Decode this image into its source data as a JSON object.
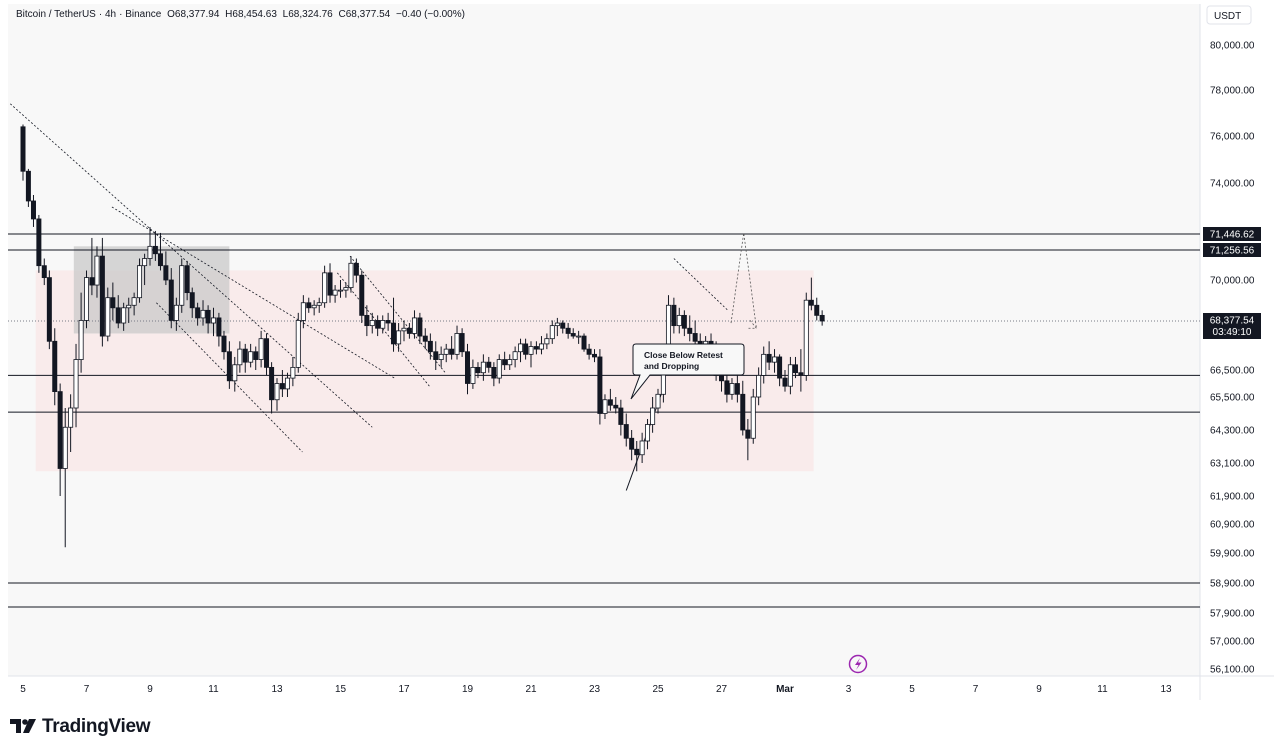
{
  "header": {
    "symbol": "Bitcoin / TetherUS",
    "interval": "4h",
    "exchange": "Binance",
    "open": "O68,377.94",
    "high": "H68,454.63",
    "low": "L68,324.76",
    "close": "C68,377.54",
    "change": "−0.40 (−0.00%)"
  },
  "currency_label": "USDT",
  "brand": "TradingView",
  "colors": {
    "up": "#ffffff",
    "down": "#131722",
    "zone": "#f9e7e7",
    "box": "#c9c9c9",
    "background": "#f8f8f8"
  },
  "chart_data": {
    "type": "candlestick",
    "title": "Bitcoin / TetherUS · 4h · Binance",
    "y_tick_labels": [
      "80,000.00",
      "78,000.00",
      "76,000.00",
      "74,000.00",
      "70,000.00",
      "66,500.00",
      "65,500.00",
      "64,300.00",
      "63,100.00",
      "61,900.00",
      "60,900.00",
      "59,900.00",
      "58,900.00",
      "57,900.00",
      "57,000.00",
      "56,100.00"
    ],
    "x_tick_labels": [
      "5",
      "7",
      "9",
      "11",
      "13",
      "15",
      "17",
      "19",
      "21",
      "23",
      "25",
      "27",
      "Mar",
      "3",
      "5",
      "7",
      "9",
      "11",
      "13"
    ],
    "price_badges": [
      {
        "label": "71,446.62",
        "value": 71446.62
      },
      {
        "label": "71,256.56",
        "value": 71256.56
      },
      {
        "label": "68,377.54",
        "value": 68377.54,
        "sub": "03:49:10"
      }
    ],
    "horizontal_levels": [
      71446.62,
      71256.56,
      66300,
      64950,
      58900,
      58100
    ],
    "annotation": {
      "text": [
        "Close Below Retest",
        "and Dropping"
      ]
    },
    "ohlc": [
      [
        5.0,
        76400,
        76500,
        74100,
        74500
      ],
      [
        5.17,
        74500,
        74600,
        72800,
        73100
      ],
      [
        5.33,
        73100,
        73400,
        71800,
        72200
      ],
      [
        5.5,
        72200,
        72400,
        70300,
        70600
      ],
      [
        5.67,
        70600,
        70900,
        69800,
        70100
      ],
      [
        5.83,
        70100,
        70400,
        67300,
        67600
      ],
      [
        6.0,
        67600,
        68100,
        65200,
        65700
      ],
      [
        6.17,
        65700,
        66000,
        61900,
        62900
      ],
      [
        6.33,
        62900,
        65100,
        60100,
        64400
      ],
      [
        6.5,
        64400,
        65600,
        63500,
        65100
      ],
      [
        6.67,
        65100,
        67500,
        64400,
        66900
      ],
      [
        6.83,
        66900,
        69500,
        66400,
        68400
      ],
      [
        7.0,
        68400,
        70400,
        68100,
        70100
      ],
      [
        7.17,
        70100,
        71400,
        69400,
        69800
      ],
      [
        7.33,
        69800,
        71300,
        69300,
        71000
      ],
      [
        7.5,
        71000,
        71400,
        67400,
        67800
      ],
      [
        7.67,
        67800,
        69700,
        67600,
        69300
      ],
      [
        7.83,
        69300,
        69900,
        68400,
        68900
      ],
      [
        8.0,
        68900,
        69400,
        68100,
        68300
      ],
      [
        8.17,
        68300,
        69100,
        68000,
        68900
      ],
      [
        8.33,
        68900,
        69300,
        68300,
        69000
      ],
      [
        8.5,
        69000,
        69500,
        68600,
        69300
      ],
      [
        8.67,
        69300,
        70900,
        69100,
        70600
      ],
      [
        8.83,
        70600,
        71100,
        69800,
        70900
      ],
      [
        9.0,
        70900,
        71800,
        70600,
        71300
      ],
      [
        9.17,
        71300,
        71600,
        70800,
        71100
      ],
      [
        9.33,
        71100,
        71500,
        70400,
        70600
      ],
      [
        9.5,
        70600,
        71200,
        69800,
        70000
      ],
      [
        9.67,
        70000,
        70500,
        68100,
        68400
      ],
      [
        9.83,
        68400,
        69300,
        68000,
        69000
      ],
      [
        10.0,
        69000,
        70900,
        68700,
        70600
      ],
      [
        10.17,
        70600,
        70800,
        69200,
        69500
      ],
      [
        10.33,
        69500,
        69700,
        68500,
        68900
      ],
      [
        10.5,
        68900,
        69100,
        68200,
        68500
      ],
      [
        10.67,
        68500,
        69200,
        68200,
        68800
      ],
      [
        10.83,
        68800,
        69000,
        67900,
        68300
      ],
      [
        11.0,
        68300,
        68900,
        67800,
        68500
      ],
      [
        11.17,
        68500,
        68700,
        67400,
        67800
      ],
      [
        11.33,
        67800,
        68000,
        66900,
        67200
      ],
      [
        11.5,
        67200,
        67600,
        65800,
        66100
      ],
      [
        11.67,
        66100,
        67000,
        65700,
        66700
      ],
      [
        11.83,
        66700,
        67600,
        66400,
        67300
      ],
      [
        12.0,
        67300,
        67500,
        66400,
        66800
      ],
      [
        12.17,
        66800,
        67500,
        66600,
        67200
      ],
      [
        12.33,
        67200,
        67400,
        66500,
        66900
      ],
      [
        12.5,
        66900,
        68000,
        66600,
        67700
      ],
      [
        12.67,
        67700,
        67900,
        66300,
        66600
      ],
      [
        12.83,
        66600,
        66800,
        64900,
        65400
      ],
      [
        13.0,
        65400,
        66200,
        65000,
        66000
      ],
      [
        13.17,
        66000,
        66500,
        65500,
        65800
      ],
      [
        13.33,
        65800,
        66400,
        65500,
        66200
      ],
      [
        13.5,
        66200,
        67000,
        65900,
        66600
      ],
      [
        13.67,
        66600,
        68700,
        66400,
        68400
      ],
      [
        13.83,
        68400,
        69400,
        68100,
        69100
      ],
      [
        14.0,
        69100,
        69300,
        68700,
        68900
      ],
      [
        14.17,
        68900,
        69200,
        68600,
        69000
      ],
      [
        14.33,
        69000,
        69300,
        68700,
        69100
      ],
      [
        14.5,
        69100,
        70600,
        68900,
        70300
      ],
      [
        14.67,
        70300,
        70700,
        69100,
        69400
      ],
      [
        14.83,
        69400,
        69800,
        69100,
        69600
      ],
      [
        15.0,
        69600,
        70000,
        69300,
        69600
      ],
      [
        15.17,
        69600,
        69900,
        69300,
        69700
      ],
      [
        15.33,
        69700,
        71000,
        69500,
        70700
      ],
      [
        15.5,
        70700,
        70900,
        69900,
        70200
      ],
      [
        15.67,
        70200,
        70400,
        68300,
        68600
      ],
      [
        15.83,
        68600,
        69000,
        67800,
        68200
      ],
      [
        16.0,
        68200,
        68700,
        67900,
        68400
      ],
      [
        16.17,
        68400,
        68600,
        67800,
        68100
      ],
      [
        16.33,
        68100,
        68600,
        67900,
        68400
      ],
      [
        16.5,
        68400,
        68700,
        68000,
        68300
      ],
      [
        16.67,
        68300,
        69300,
        67200,
        67500
      ],
      [
        16.83,
        67500,
        68300,
        67200,
        68000
      ],
      [
        17.0,
        68000,
        68400,
        67600,
        68100
      ],
      [
        17.17,
        68100,
        68300,
        67700,
        67900
      ],
      [
        17.33,
        67900,
        68800,
        67700,
        68500
      ],
      [
        17.5,
        68500,
        68700,
        67500,
        67800
      ],
      [
        17.67,
        67800,
        68100,
        67300,
        67600
      ],
      [
        17.83,
        67600,
        67900,
        66900,
        67200
      ],
      [
        18.0,
        67200,
        67600,
        66500,
        66900
      ],
      [
        18.17,
        66900,
        67400,
        66600,
        67100
      ],
      [
        18.33,
        67100,
        67500,
        66800,
        67300
      ],
      [
        18.5,
        67300,
        67800,
        66900,
        67100
      ],
      [
        18.67,
        67100,
        68200,
        66900,
        67900
      ],
      [
        18.83,
        67900,
        68100,
        67000,
        67200
      ],
      [
        19.0,
        67200,
        67500,
        65600,
        66000
      ],
      [
        19.17,
        66000,
        66900,
        65800,
        66600
      ],
      [
        19.33,
        66600,
        66800,
        66200,
        66400
      ],
      [
        19.5,
        66400,
        67100,
        66100,
        66800
      ],
      [
        19.67,
        66800,
        67000,
        66400,
        66600
      ],
      [
        19.83,
        66600,
        66800,
        65900,
        66200
      ],
      [
        20.0,
        66200,
        67100,
        66000,
        66900
      ],
      [
        20.17,
        66900,
        67200,
        66500,
        66700
      ],
      [
        20.33,
        66700,
        67100,
        66500,
        66900
      ],
      [
        20.5,
        66900,
        67400,
        66600,
        67200
      ],
      [
        20.67,
        67200,
        67700,
        66800,
        67500
      ],
      [
        20.83,
        67500,
        67700,
        66900,
        67100
      ],
      [
        21.0,
        67100,
        67600,
        66600,
        67400
      ],
      [
        21.17,
        67400,
        67600,
        67100,
        67300
      ],
      [
        21.33,
        67300,
        67800,
        67100,
        67500
      ],
      [
        21.5,
        67500,
        67900,
        67300,
        67700
      ],
      [
        21.67,
        67700,
        68400,
        67500,
        68200
      ],
      [
        21.83,
        68200,
        68500,
        67800,
        68300
      ],
      [
        22.0,
        68300,
        68400,
        67900,
        68100
      ],
      [
        22.17,
        68100,
        68300,
        67700,
        67900
      ],
      [
        22.33,
        67900,
        68100,
        67700,
        67800
      ],
      [
        22.5,
        67800,
        68000,
        67500,
        67800
      ],
      [
        22.67,
        67800,
        67900,
        67200,
        67300
      ],
      [
        22.83,
        67300,
        67500,
        66900,
        67100
      ],
      [
        23.0,
        67100,
        67300,
        66800,
        67000
      ],
      [
        23.17,
        67000,
        67300,
        64500,
        64900
      ],
      [
        23.33,
        64900,
        65600,
        64700,
        65400
      ],
      [
        23.5,
        65400,
        65800,
        65000,
        65200
      ],
      [
        23.67,
        65200,
        65500,
        64900,
        65100
      ],
      [
        23.83,
        65100,
        65400,
        64100,
        64500
      ],
      [
        24.0,
        64500,
        64900,
        63700,
        64000
      ],
      [
        24.17,
        64000,
        64300,
        63200,
        63600
      ],
      [
        24.33,
        63600,
        63900,
        62800,
        63400
      ],
      [
        24.5,
        63400,
        64200,
        63100,
        63900
      ],
      [
        24.67,
        63900,
        64700,
        63600,
        64500
      ],
      [
        24.83,
        64500,
        65500,
        64200,
        65100
      ],
      [
        25.0,
        65100,
        65800,
        64900,
        65600
      ],
      [
        25.17,
        65600,
        67400,
        65300,
        67100
      ],
      [
        25.33,
        67100,
        69400,
        66900,
        69000
      ],
      [
        25.5,
        69000,
        69300,
        67900,
        68200
      ],
      [
        25.67,
        68200,
        68900,
        67900,
        68600
      ],
      [
        25.83,
        68600,
        68800,
        67800,
        68100
      ],
      [
        26.0,
        68100,
        68600,
        67600,
        67900
      ],
      [
        26.17,
        67900,
        68400,
        67400,
        67600
      ],
      [
        26.33,
        67600,
        67900,
        67200,
        67500
      ],
      [
        26.5,
        67500,
        67800,
        67100,
        67600
      ],
      [
        26.67,
        67600,
        67900,
        67300,
        67400
      ],
      [
        26.83,
        67400,
        67600,
        66100,
        66300
      ],
      [
        27.0,
        66300,
        66600,
        65700,
        66100
      ],
      [
        27.17,
        66100,
        66400,
        65300,
        65600
      ],
      [
        27.33,
        65600,
        66200,
        65400,
        66000
      ],
      [
        27.5,
        66000,
        66300,
        65300,
        65600
      ],
      [
        27.67,
        65600,
        66100,
        64100,
        64300
      ],
      [
        27.83,
        64300,
        64700,
        63200,
        64000
      ],
      [
        28.0,
        64000,
        65800,
        63800,
        65500
      ],
      [
        28.17,
        65500,
        66600,
        65200,
        66300
      ],
      [
        28.33,
        66300,
        67400,
        66000,
        67100
      ],
      [
        28.5,
        67100,
        67600,
        66500,
        66800
      ],
      [
        28.67,
        66800,
        67300,
        66400,
        67000
      ],
      [
        28.83,
        67000,
        67100,
        65900,
        66200
      ],
      [
        29.0,
        66200,
        66500,
        65700,
        65900
      ],
      [
        29.17,
        65900,
        67000,
        65600,
        66700
      ],
      [
        29.33,
        66700,
        67000,
        66200,
        66400
      ],
      [
        29.5,
        66400,
        67300,
        65700,
        66300
      ],
      [
        29.67,
        66300,
        69500,
        66100,
        69200
      ],
      [
        29.83,
        69200,
        70100,
        68800,
        69000
      ],
      [
        30.0,
        69000,
        69300,
        68400,
        68600
      ],
      [
        30.17,
        68600,
        68800,
        68200,
        68377.54
      ]
    ]
  }
}
